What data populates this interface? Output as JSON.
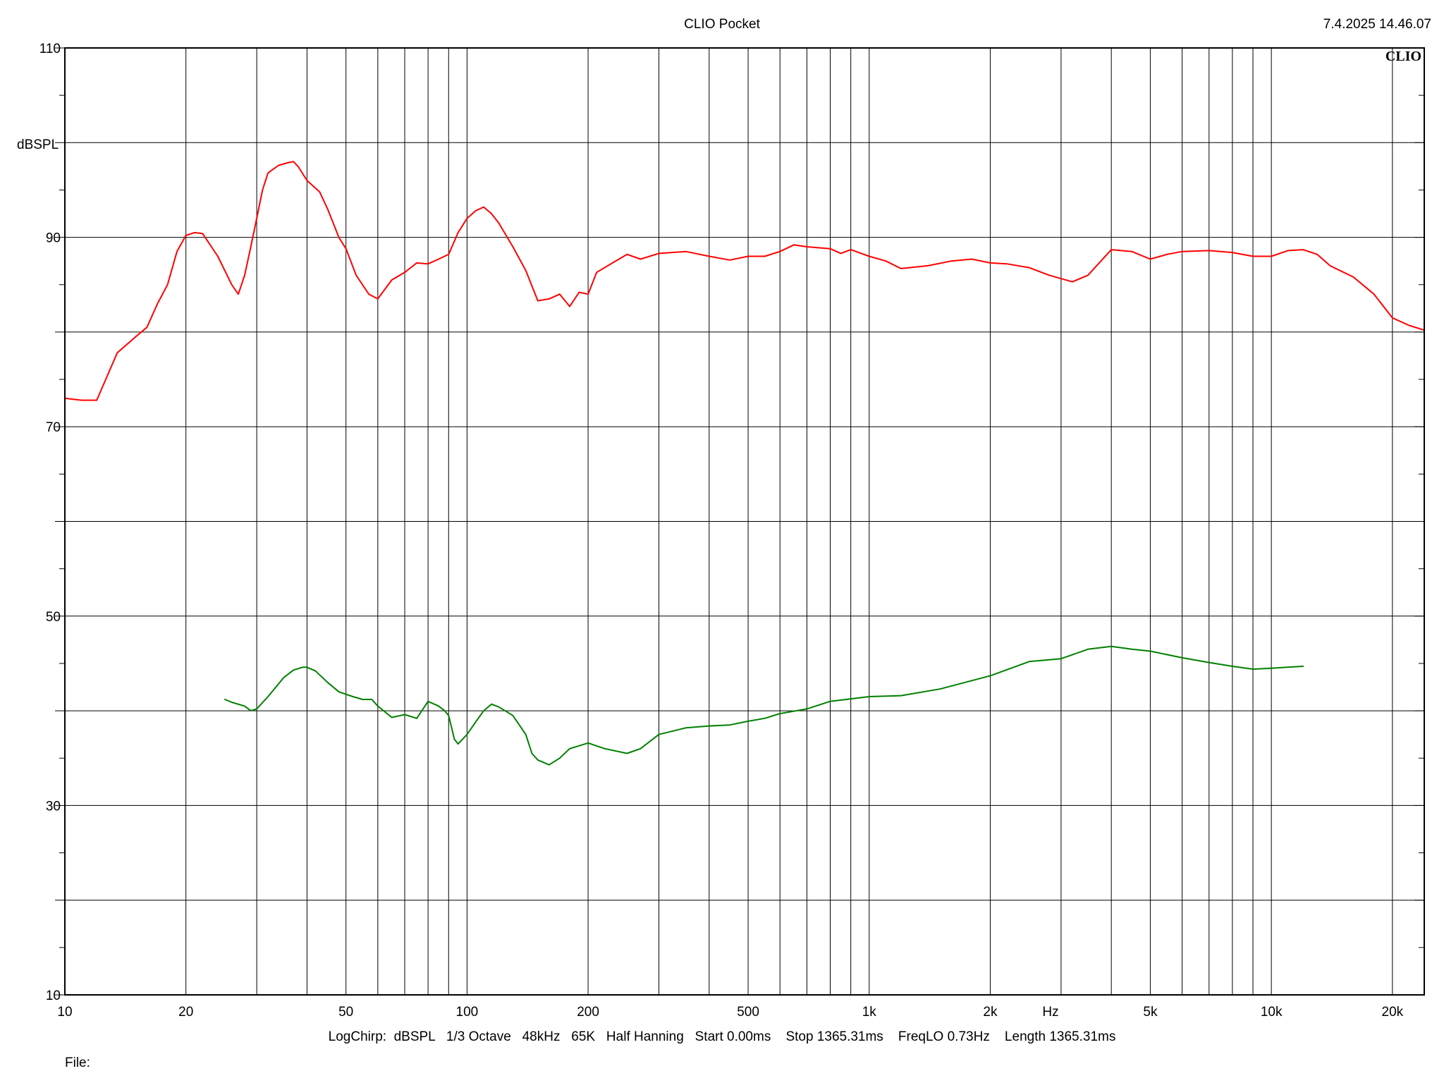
{
  "header": {
    "app_title": "CLIO Pocket",
    "datetime": "7.4.2025 14.46.07",
    "logo_text": "CLIO"
  },
  "footer": {
    "params": "LogChirp:  dBSPL   1/3 Octave   48kHz   65K   Half Hanning   Start 0.00ms    Stop 1365.31ms    FreqLO 0.73Hz    Length 1365.31ms",
    "file_label": "File:"
  },
  "colors": {
    "background": "#ffffff",
    "grid": "#000000",
    "series_red": "#ff0000",
    "series_green": "#008000"
  },
  "chart_data": {
    "type": "line",
    "x_scale": "log",
    "xlim": [
      10,
      24000
    ],
    "ylim": [
      10,
      110
    ],
    "xlabel": "Hz",
    "ylabel": "dBSPL",
    "grid": true,
    "x_ticks": [
      {
        "value": 10,
        "label": "10"
      },
      {
        "value": 20,
        "label": "20"
      },
      {
        "value": 50,
        "label": "50"
      },
      {
        "value": 100,
        "label": "100"
      },
      {
        "value": 200,
        "label": "200"
      },
      {
        "value": 500,
        "label": "500"
      },
      {
        "value": 1000,
        "label": "1k"
      },
      {
        "value": 2000,
        "label": "2k"
      },
      {
        "value": 5000,
        "label": "5k"
      },
      {
        "value": 10000,
        "label": "10k"
      },
      {
        "value": 20000,
        "label": "20k"
      }
    ],
    "y_ticks": [
      {
        "value": 10,
        "label": "10"
      },
      {
        "value": 30,
        "label": "30"
      },
      {
        "value": 50,
        "label": "50"
      },
      {
        "value": 70,
        "label": "70"
      },
      {
        "value": 90,
        "label": "90"
      },
      {
        "value": 110,
        "label": "110"
      }
    ],
    "y_grid": [
      10,
      20,
      30,
      40,
      50,
      60,
      70,
      80,
      90,
      100,
      110
    ],
    "series": [
      {
        "color": "#ff0000",
        "points": [
          [
            10,
            73
          ],
          [
            11,
            72.8
          ],
          [
            12,
            72.8
          ],
          [
            13.5,
            77.8
          ],
          [
            15,
            79.5
          ],
          [
            16,
            80.5
          ],
          [
            17,
            83
          ],
          [
            18,
            85
          ],
          [
            19,
            88.5
          ],
          [
            20,
            90.2
          ],
          [
            21,
            90.5
          ],
          [
            22,
            90.4
          ],
          [
            24,
            88
          ],
          [
            26,
            85
          ],
          [
            27,
            84
          ],
          [
            28,
            86
          ],
          [
            29,
            89
          ],
          [
            30,
            92
          ],
          [
            31,
            95
          ],
          [
            32,
            96.8
          ],
          [
            34,
            97.6
          ],
          [
            36,
            97.9
          ],
          [
            37,
            98
          ],
          [
            38,
            97.5
          ],
          [
            40,
            96
          ],
          [
            43,
            94.8
          ],
          [
            45,
            93
          ],
          [
            48,
            90
          ],
          [
            50,
            88.8
          ],
          [
            53,
            86
          ],
          [
            57,
            84
          ],
          [
            60,
            83.5
          ],
          [
            65,
            85.5
          ],
          [
            70,
            86.3
          ],
          [
            75,
            87.3
          ],
          [
            80,
            87.2
          ],
          [
            85,
            87.7
          ],
          [
            90,
            88.2
          ],
          [
            95,
            90.5
          ],
          [
            100,
            92
          ],
          [
            105,
            92.8
          ],
          [
            110,
            93.2
          ],
          [
            115,
            92.5
          ],
          [
            120,
            91.5
          ],
          [
            130,
            89
          ],
          [
            140,
            86.5
          ],
          [
            150,
            83.3
          ],
          [
            160,
            83.5
          ],
          [
            170,
            84
          ],
          [
            180,
            82.7
          ],
          [
            190,
            84.2
          ],
          [
            200,
            84
          ],
          [
            210,
            86.3
          ],
          [
            230,
            87.3
          ],
          [
            250,
            88.2
          ],
          [
            270,
            87.7
          ],
          [
            300,
            88.3
          ],
          [
            350,
            88.5
          ],
          [
            400,
            88
          ],
          [
            450,
            87.6
          ],
          [
            500,
            88
          ],
          [
            550,
            88
          ],
          [
            600,
            88.5
          ],
          [
            650,
            89.2
          ],
          [
            700,
            89
          ],
          [
            800,
            88.8
          ],
          [
            850,
            88.3
          ],
          [
            900,
            88.7
          ],
          [
            1000,
            88
          ],
          [
            1100,
            87.5
          ],
          [
            1200,
            86.7
          ],
          [
            1400,
            87
          ],
          [
            1600,
            87.5
          ],
          [
            1800,
            87.7
          ],
          [
            2000,
            87.3
          ],
          [
            2200,
            87.2
          ],
          [
            2500,
            86.8
          ],
          [
            2800,
            86
          ],
          [
            3200,
            85.3
          ],
          [
            3500,
            86
          ],
          [
            4000,
            88.7
          ],
          [
            4500,
            88.5
          ],
          [
            5000,
            87.7
          ],
          [
            5500,
            88.2
          ],
          [
            6000,
            88.5
          ],
          [
            7000,
            88.6
          ],
          [
            8000,
            88.4
          ],
          [
            9000,
            88
          ],
          [
            10000,
            88
          ],
          [
            11000,
            88.6
          ],
          [
            12000,
            88.7
          ],
          [
            13000,
            88.2
          ],
          [
            14000,
            87
          ],
          [
            16000,
            85.8
          ],
          [
            18000,
            84
          ],
          [
            20000,
            81.5
          ],
          [
            22000,
            80.7
          ],
          [
            24000,
            80.2
          ]
        ]
      },
      {
        "color": "#008000",
        "points": [
          [
            25,
            41.2
          ],
          [
            26,
            40.9
          ],
          [
            28,
            40.5
          ],
          [
            29,
            40
          ],
          [
            30,
            40.2
          ],
          [
            32,
            41.5
          ],
          [
            35,
            43.5
          ],
          [
            37,
            44.3
          ],
          [
            39,
            44.6
          ],
          [
            40,
            44.6
          ],
          [
            42,
            44.2
          ],
          [
            45,
            43
          ],
          [
            48,
            42
          ],
          [
            52,
            41.5
          ],
          [
            55,
            41.2
          ],
          [
            58,
            41.2
          ],
          [
            60,
            40.5
          ],
          [
            65,
            39.3
          ],
          [
            70,
            39.6
          ],
          [
            75,
            39.2
          ],
          [
            80,
            41
          ],
          [
            85,
            40.5
          ],
          [
            88,
            40
          ],
          [
            90,
            39.5
          ],
          [
            93,
            37
          ],
          [
            95,
            36.5
          ],
          [
            100,
            37.5
          ],
          [
            105,
            38.8
          ],
          [
            110,
            40
          ],
          [
            115,
            40.7
          ],
          [
            120,
            40.4
          ],
          [
            130,
            39.5
          ],
          [
            140,
            37.5
          ],
          [
            145,
            35.5
          ],
          [
            150,
            34.8
          ],
          [
            160,
            34.3
          ],
          [
            170,
            35
          ],
          [
            180,
            36
          ],
          [
            200,
            36.6
          ],
          [
            220,
            36
          ],
          [
            250,
            35.5
          ],
          [
            270,
            36
          ],
          [
            300,
            37.5
          ],
          [
            350,
            38.2
          ],
          [
            400,
            38.4
          ],
          [
            450,
            38.5
          ],
          [
            500,
            38.9
          ],
          [
            550,
            39.2
          ],
          [
            600,
            39.7
          ],
          [
            700,
            40.2
          ],
          [
            800,
            41
          ],
          [
            1000,
            41.5
          ],
          [
            1200,
            41.6
          ],
          [
            1500,
            42.3
          ],
          [
            2000,
            43.7
          ],
          [
            2500,
            45.2
          ],
          [
            3000,
            45.5
          ],
          [
            3500,
            46.5
          ],
          [
            4000,
            46.8
          ],
          [
            4500,
            46.5
          ],
          [
            5000,
            46.3
          ],
          [
            6000,
            45.6
          ],
          [
            7000,
            45.1
          ],
          [
            8000,
            44.7
          ],
          [
            9000,
            44.4
          ],
          [
            10000,
            44.5
          ],
          [
            11000,
            44.6
          ],
          [
            12000,
            44.7
          ]
        ]
      }
    ]
  }
}
